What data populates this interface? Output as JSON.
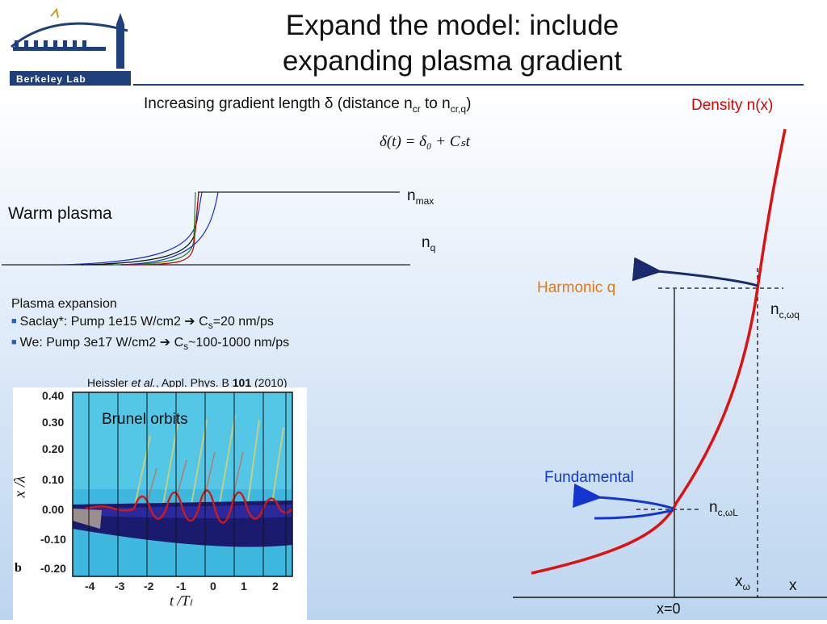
{
  "logo": {
    "text": "Berkeley Lab"
  },
  "title_line1": "Expand the model: include",
  "title_line2": "expanding plasma gradient",
  "gradient_caption": {
    "prefix": "Increasing gradient length δ (distance n",
    "sub1": "cr",
    "mid": " to n",
    "sub2": "cr,q",
    "suffix": ")"
  },
  "formula": "δ(t) = δ₀ + Cₛt",
  "density_label": "Density n(x)",
  "warm_plasma": "Warm plasma",
  "n_max": {
    "base": "n",
    "sub": "max"
  },
  "n_q": {
    "base": "n",
    "sub": "q"
  },
  "expansion": {
    "heading": "Plasma expansion",
    "item1": {
      "prefix": "Saclay*: Pump 1e15 W/cm2 ",
      "arrow": "➔",
      "mid": " C",
      "sub": "s",
      "suffix": "=20 nm/ps"
    },
    "item2": {
      "prefix": "We: Pump 3e17 W/cm2 ",
      "arrow": "➔",
      "mid": " C",
      "sub": "s",
      "suffix": "~100-1000 nm/ps"
    }
  },
  "citation": {
    "authors": "Heissler ",
    "etal": "et al.",
    "journal": ", Appl. Phys. B ",
    "volume": "101",
    "year": " (2010)"
  },
  "brunel": {
    "label": "Brunel orbits",
    "ylabel": "x /λ",
    "xlabel": "t /Tₗ",
    "panel": "b",
    "yticks": [
      "0.40",
      "0.30",
      "0.20",
      "0.10",
      "0.00",
      "-0.10",
      "-0.20"
    ],
    "xticks": [
      "-4",
      "-3",
      "-2",
      "-1",
      "0",
      "1",
      "2"
    ]
  },
  "harmonic_label": "Harmonic q",
  "fundamental_label": "Fundamental",
  "n_c_wq": {
    "base": "n",
    "sub": "c,ωq"
  },
  "n_c_wl": {
    "base": "n",
    "sub": "c,ωL"
  },
  "x_omega": {
    "base": "x",
    "sub": "ω"
  },
  "x_axis": "x",
  "x0": "x=0",
  "colors": {
    "density": "#dd0000",
    "harmonic": "#e07a18",
    "fundamental": "#1535d0",
    "arrow_dark": "#1a2a6c"
  }
}
